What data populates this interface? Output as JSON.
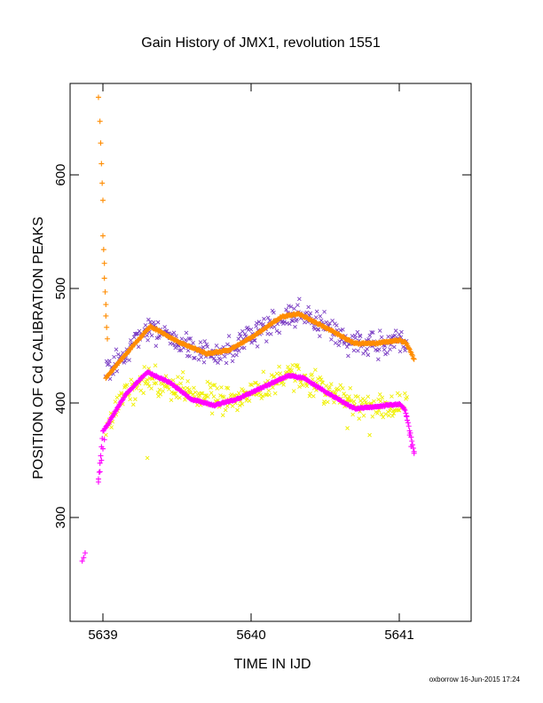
{
  "chart_data": {
    "type": "scatter",
    "title": "Gain History of JMX1, revolution 1551",
    "xlabel": "TIME IN IJD",
    "ylabel": "POSITION OF Cd CALIBRATION PEAKS",
    "xlim": [
      5638.8,
      5641.5
    ],
    "ylim": [
      210,
      690
    ],
    "x_ticks": [
      "5639",
      "5640",
      "5641"
    ],
    "y_ticks": [
      "300",
      "400",
      "500",
      "600"
    ],
    "grid": false,
    "series": [
      {
        "marker": "x",
        "color": "#7b3fc4",
        "trend": [
          [
            5639.02,
            425
          ],
          [
            5639.15,
            442
          ],
          [
            5639.3,
            466
          ],
          [
            5639.5,
            456
          ],
          [
            5639.7,
            443
          ],
          [
            5639.85,
            444
          ],
          [
            5640.0,
            460
          ],
          [
            5640.2,
            474
          ],
          [
            5640.35,
            479
          ],
          [
            5640.5,
            469
          ],
          [
            5640.7,
            452
          ],
          [
            5640.9,
            452
          ],
          [
            5641.05,
            455
          ]
        ],
        "spread": 12
      },
      {
        "marker": "x",
        "color": "#f0f000",
        "trend": [
          [
            5639.02,
            382
          ],
          [
            5639.15,
            405
          ],
          [
            5639.3,
            420
          ],
          [
            5639.5,
            414
          ],
          [
            5639.7,
            404
          ],
          [
            5639.9,
            402
          ],
          [
            5640.1,
            414
          ],
          [
            5640.25,
            424
          ],
          [
            5640.45,
            418
          ],
          [
            5640.65,
            401
          ],
          [
            5640.85,
            398
          ],
          [
            5641.05,
            398
          ]
        ],
        "spread": 14,
        "outliers": [
          [
            5639.3,
            352
          ],
          [
            5640.65,
            378
          ],
          [
            5640.8,
            372
          ]
        ]
      },
      {
        "marker": "+",
        "color": "#ff00ff",
        "curve": [
          [
            5638.97,
            333
          ],
          [
            5639.0,
            375
          ],
          [
            5639.05,
            385
          ],
          [
            5639.15,
            407
          ],
          [
            5639.3,
            427
          ],
          [
            5639.45,
            418
          ],
          [
            5639.6,
            403
          ],
          [
            5639.75,
            398
          ],
          [
            5639.9,
            403
          ],
          [
            5640.1,
            415
          ],
          [
            5640.25,
            424
          ],
          [
            5640.35,
            422
          ],
          [
            5640.55,
            406
          ],
          [
            5640.7,
            395
          ],
          [
            5640.85,
            397
          ],
          [
            5641.0,
            399
          ],
          [
            5641.04,
            394
          ],
          [
            5641.07,
            376
          ],
          [
            5641.1,
            358
          ]
        ],
        "points": [
          [
            5638.86,
            262
          ],
          [
            5638.87,
            265
          ],
          [
            5638.88,
            269
          ],
          [
            5638.97,
            331
          ],
          [
            5638.98,
            340
          ],
          [
            5638.99,
            350
          ],
          [
            5639.0,
            360
          ],
          [
            5639.01,
            368
          ],
          [
            5641.05,
            388
          ],
          [
            5641.07,
            372
          ],
          [
            5641.08,
            362
          ],
          [
            5641.1,
            356
          ]
        ]
      },
      {
        "marker": "+",
        "color": "#ff8c00",
        "curve": [
          [
            5639.02,
            422
          ],
          [
            5639.15,
            442
          ],
          [
            5639.32,
            467
          ],
          [
            5639.5,
            454
          ],
          [
            5639.7,
            443
          ],
          [
            5639.85,
            446
          ],
          [
            5640.0,
            457
          ],
          [
            5640.2,
            475
          ],
          [
            5640.32,
            478
          ],
          [
            5640.5,
            466
          ],
          [
            5640.7,
            452
          ],
          [
            5640.85,
            452
          ],
          [
            5641.0,
            455
          ],
          [
            5641.05,
            452
          ],
          [
            5641.1,
            438
          ]
        ],
        "points": [
          [
            5638.97,
            667
          ],
          [
            5638.98,
            646
          ],
          [
            5638.985,
            627
          ],
          [
            5638.99,
            609
          ],
          [
            5638.995,
            592
          ],
          [
            5639.0,
            577
          ],
          [
            5639.0,
            546
          ],
          [
            5639.005,
            534
          ],
          [
            5639.01,
            522
          ],
          [
            5639.01,
            509
          ],
          [
            5639.015,
            497
          ],
          [
            5639.02,
            486
          ],
          [
            5639.02,
            476
          ],
          [
            5639.025,
            466
          ],
          [
            5639.03,
            456
          ]
        ]
      }
    ]
  },
  "footer": "oxborrow 16-Jun-2015 17:24"
}
